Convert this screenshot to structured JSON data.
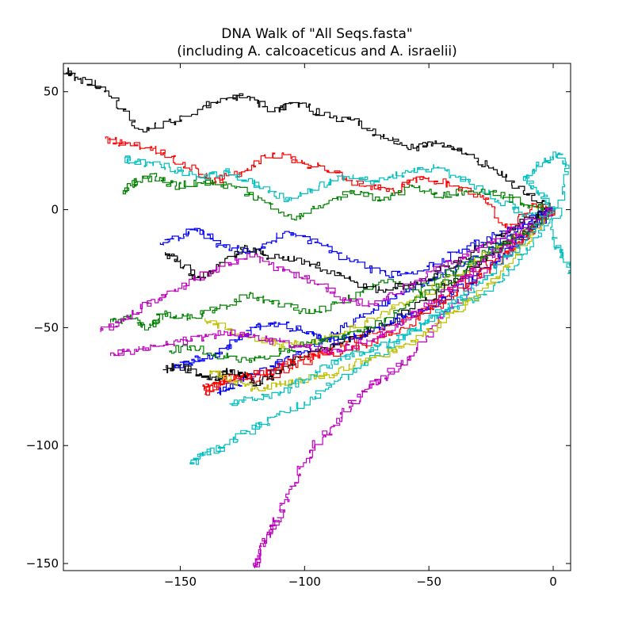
{
  "chart_data": {
    "type": "line",
    "title_lines": [
      "DNA Walk of \"All Seqs.fasta\"",
      "(including A. calcoaceticus and A. israelii)"
    ],
    "xlabel": "",
    "ylabel": "",
    "xlim": [
      -197,
      7
    ],
    "ylim": [
      -153,
      62
    ],
    "xticks": [
      -150,
      -100,
      -50,
      0
    ],
    "yticks": [
      -150,
      -100,
      -50,
      0,
      50
    ],
    "xtick_labels": [
      "−150",
      "−100",
      "−50",
      "0"
    ],
    "ytick_labels": [
      "−150",
      "−100",
      "−50",
      "0",
      "50"
    ],
    "grid": false,
    "legend": "none",
    "colors": [
      "#0000ff",
      "#008000",
      "#ff0000",
      "#00bfbf",
      "#bf00bf",
      "#bfbf00",
      "#000000"
    ],
    "series": [
      {
        "color": "#000000",
        "x": [
          0,
          -12,
          -24,
          -35,
          -47,
          -56,
          -68,
          -80,
          -92,
          -102,
          -112,
          -122,
          -135,
          -150,
          -165,
          -180,
          -192,
          -197
        ],
        "y": [
          0,
          8,
          18,
          24,
          28,
          26,
          31,
          38,
          40,
          45,
          42,
          48,
          46,
          38,
          34,
          52,
          56,
          59
        ]
      },
      {
        "color": "#ff0000",
        "x": [
          0,
          -8,
          -18,
          -28,
          -40,
          -52,
          -64,
          -76,
          -88,
          -100,
          -112,
          -124,
          -136,
          -148,
          -160,
          -172,
          -180
        ],
        "y": [
          0,
          2,
          -8,
          6,
          10,
          14,
          8,
          10,
          16,
          20,
          24,
          16,
          12,
          20,
          26,
          28,
          30
        ]
      },
      {
        "color": "#00bfbf",
        "x": [
          0,
          -10,
          -22,
          -34,
          -46,
          -58,
          -70,
          -82,
          -94,
          -106,
          -118,
          -130,
          -142,
          -154,
          -166,
          -172
        ],
        "y": [
          0,
          -2,
          4,
          12,
          18,
          16,
          12,
          14,
          10,
          4,
          10,
          16,
          14,
          18,
          20,
          22
        ]
      },
      {
        "color": "#008000",
        "x": [
          0,
          -10,
          -20,
          -32,
          -44,
          -56,
          -68,
          -80,
          -92,
          -104,
          -116,
          -128,
          -140,
          -152,
          -160,
          -168,
          -172
        ],
        "y": [
          0,
          2,
          6,
          8,
          6,
          10,
          4,
          8,
          2,
          -4,
          4,
          10,
          12,
          10,
          14,
          12,
          8
        ]
      },
      {
        "color": "#0000ff",
        "x": [
          0,
          -12,
          -25,
          -38,
          -52,
          -66,
          -80,
          -94,
          -108,
          -120,
          -132,
          -142,
          -150,
          -158
        ],
        "y": [
          0,
          -6,
          -12,
          -18,
          -26,
          -28,
          -22,
          -14,
          -10,
          -18,
          -16,
          -8,
          -12,
          -14
        ]
      },
      {
        "color": "#bf00bf",
        "x": [
          0,
          -10,
          -22,
          -34,
          -46,
          -56,
          -66,
          -74,
          -82,
          -88,
          -96,
          -102,
          -108,
          -112,
          -116,
          -118,
          -120
        ],
        "y": [
          0,
          -10,
          -22,
          -36,
          -48,
          -62,
          -70,
          -76,
          -84,
          -92,
          -100,
          -112,
          -124,
          -134,
          -140,
          -148,
          -152
        ]
      },
      {
        "color": "#00bfbf",
        "x": [
          0,
          -8,
          -18,
          -28,
          -40,
          -52,
          -64,
          -76,
          -88,
          -100,
          -112,
          -122,
          -132,
          -140,
          -146
        ],
        "y": [
          0,
          -14,
          -26,
          -36,
          -42,
          -48,
          -58,
          -66,
          -74,
          -82,
          -88,
          -94,
          -100,
          -104,
          -108
        ]
      },
      {
        "color": "#0000ff",
        "x": [
          0,
          -12,
          -24,
          -36,
          -48,
          -60,
          -72,
          -84,
          -96,
          -108,
          -118,
          -128,
          -135
        ],
        "y": [
          0,
          -8,
          -16,
          -24,
          -30,
          -36,
          -42,
          -50,
          -58,
          -64,
          -70,
          -74,
          -78
        ]
      },
      {
        "color": "#008000",
        "x": [
          0,
          -12,
          -26,
          -40,
          -54,
          -68,
          -82,
          -96,
          -110,
          -122,
          -134,
          -146,
          -156,
          -162,
          -170,
          -178
        ],
        "y": [
          0,
          -10,
          -18,
          -26,
          -34,
          -30,
          -38,
          -44,
          -40,
          -36,
          -42,
          -46,
          -44,
          -50,
          -46,
          -48
        ]
      },
      {
        "color": "#ff0000",
        "x": [
          0,
          -10,
          -22,
          -34,
          -46,
          -58,
          -70,
          -82,
          -94,
          -106,
          -118,
          -128,
          -136,
          -140
        ],
        "y": [
          0,
          -12,
          -20,
          -28,
          -38,
          -46,
          -52,
          -56,
          -62,
          -68,
          -72,
          -70,
          -74,
          -76
        ]
      },
      {
        "color": "#bfbf00",
        "x": [
          0,
          -12,
          -24,
          -36,
          -48,
          -60,
          -72,
          -84,
          -96,
          -108,
          -120,
          -132,
          -140
        ],
        "y": [
          0,
          -10,
          -18,
          -26,
          -34,
          -40,
          -46,
          -52,
          -56,
          -58,
          -54,
          -50,
          -46
        ]
      },
      {
        "color": "#000000",
        "x": [
          0,
          -14,
          -28,
          -42,
          -56,
          -70,
          -84,
          -98,
          -112,
          -124,
          -134,
          -142,
          -150,
          -156
        ],
        "y": [
          0,
          -6,
          -16,
          -24,
          -32,
          -34,
          -28,
          -22,
          -20,
          -16,
          -24,
          -30,
          -22,
          -18
        ]
      },
      {
        "color": "#bf00bf",
        "x": [
          0,
          -12,
          -24,
          -36,
          -48,
          -60,
          -72,
          -84,
          -96,
          -108,
          -120,
          -132,
          -144,
          -156,
          -166,
          -174,
          -182
        ],
        "y": [
          0,
          -6,
          -14,
          -20,
          -26,
          -34,
          -40,
          -38,
          -30,
          -26,
          -20,
          -24,
          -30,
          -36,
          -42,
          -48,
          -52
        ]
      },
      {
        "color": "#00bfbf",
        "x": [
          0,
          -6,
          -12,
          -4,
          2,
          6,
          0,
          4,
          8
        ],
        "y": [
          0,
          8,
          14,
          20,
          24,
          16,
          -12,
          -20,
          -28
        ]
      },
      {
        "color": "#000000",
        "x": [
          0,
          -14,
          -28,
          -42,
          -56,
          -70,
          -84,
          -98,
          -110,
          -118,
          -124,
          -130,
          -136,
          -142,
          -150,
          -156
        ],
        "y": [
          0,
          -12,
          -22,
          -32,
          -42,
          -50,
          -56,
          -62,
          -68,
          -74,
          -70,
          -68,
          -72,
          -70,
          -66,
          -68
        ]
      },
      {
        "color": "#0000ff",
        "x": [
          0,
          -10,
          -20,
          -30,
          -40,
          -50,
          -60,
          -70,
          -80,
          -90,
          -100,
          -110,
          -120,
          -128,
          -136,
          -144,
          -152
        ],
        "y": [
          0,
          -10,
          -20,
          -28,
          -36,
          -42,
          -46,
          -50,
          -54,
          -56,
          -52,
          -48,
          -50,
          -56,
          -62,
          -64,
          -66
        ]
      },
      {
        "color": "#ff0000",
        "x": [
          0,
          -12,
          -24,
          -36,
          -48,
          -60,
          -72,
          -84,
          -94,
          -104,
          -112,
          -120,
          -128,
          -134,
          -140
        ],
        "y": [
          0,
          -14,
          -24,
          -34,
          -42,
          -50,
          -56,
          -60,
          -62,
          -64,
          -68,
          -70,
          -72,
          -74,
          -78
        ]
      },
      {
        "color": "#008000",
        "x": [
          0,
          -12,
          -24,
          -36,
          -48,
          -60,
          -72,
          -84,
          -96,
          -108,
          -120,
          -132,
          -144,
          -154
        ],
        "y": [
          0,
          -10,
          -18,
          -26,
          -34,
          -42,
          -50,
          -54,
          -56,
          -60,
          -64,
          -62,
          -58,
          -60
        ]
      },
      {
        "color": "#bfbf00",
        "x": [
          0,
          -10,
          -20,
          -30,
          -40,
          -50,
          -60,
          -70,
          -80,
          -90,
          -100,
          -110,
          -120,
          -130,
          -138
        ],
        "y": [
          0,
          -14,
          -26,
          -36,
          -44,
          -52,
          -58,
          -62,
          -66,
          -70,
          -72,
          -74,
          -76,
          -72,
          -68
        ]
      },
      {
        "color": "#bf00bf",
        "x": [
          0,
          -10,
          -20,
          -30,
          -40,
          -50,
          -60,
          -70,
          -80,
          -90,
          -100,
          -110,
          -120,
          -130,
          -140,
          -150,
          -160,
          -170,
          -178
        ],
        "y": [
          0,
          -8,
          -16,
          -24,
          -32,
          -40,
          -48,
          -54,
          -58,
          -60,
          -58,
          -56,
          -54,
          -52,
          -54,
          -56,
          -58,
          -60,
          -62
        ]
      },
      {
        "color": "#00bfbf",
        "x": [
          0,
          -10,
          -20,
          -30,
          -40,
          -50,
          -60,
          -70,
          -80,
          -90,
          -100,
          -110,
          -120,
          -130
        ],
        "y": [
          0,
          -12,
          -22,
          -32,
          -40,
          -48,
          -54,
          -58,
          -62,
          -66,
          -72,
          -78,
          -80,
          -82
        ]
      }
    ]
  }
}
